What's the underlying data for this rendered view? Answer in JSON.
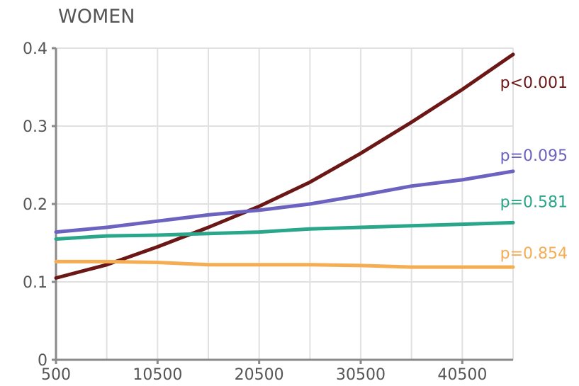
{
  "chart_data": {
    "type": "line",
    "title": "WOMEN",
    "xlabel": "",
    "ylabel": "",
    "xlim": [
      500,
      45500
    ],
    "ylim": [
      0,
      0.4
    ],
    "x_ticks": [
      500,
      10500,
      20500,
      30500,
      40500
    ],
    "x_tick_labels": [
      "500",
      "10500",
      "20500",
      "30500",
      "40500"
    ],
    "y_ticks": [
      0,
      0.1,
      0.2,
      0.3,
      0.4
    ],
    "y_tick_labels": [
      "0",
      "0.1",
      "0.2",
      "0.3",
      "0.4"
    ],
    "grid": true,
    "series": [
      {
        "label": "p<0.001",
        "color": "#6b1716",
        "x": [
          500,
          5500,
          10500,
          15500,
          20500,
          25500,
          30500,
          35500,
          40500,
          45500
        ],
        "y": [
          0.105,
          0.122,
          0.145,
          0.17,
          0.197,
          0.228,
          0.265,
          0.305,
          0.347,
          0.392
        ]
      },
      {
        "label": "p=0.095",
        "color": "#6c63c0",
        "x": [
          500,
          5500,
          10500,
          15500,
          20500,
          25500,
          30500,
          35500,
          40500,
          45500
        ],
        "y": [
          0.164,
          0.17,
          0.178,
          0.186,
          0.192,
          0.2,
          0.211,
          0.223,
          0.231,
          0.242
        ]
      },
      {
        "label": "p=0.581",
        "color": "#2aa68a",
        "x": [
          500,
          5500,
          10500,
          15500,
          20500,
          25500,
          30500,
          35500,
          40500,
          45500
        ],
        "y": [
          0.155,
          0.159,
          0.16,
          0.162,
          0.164,
          0.168,
          0.17,
          0.172,
          0.174,
          0.176
        ]
      },
      {
        "label": "p=0.854",
        "color": "#f5ad54",
        "x": [
          500,
          5500,
          10500,
          15500,
          20500,
          25500,
          30500,
          35500,
          40500,
          45500
        ],
        "y": [
          0.126,
          0.126,
          0.125,
          0.122,
          0.122,
          0.122,
          0.121,
          0.119,
          0.119,
          0.119
        ]
      }
    ]
  }
}
